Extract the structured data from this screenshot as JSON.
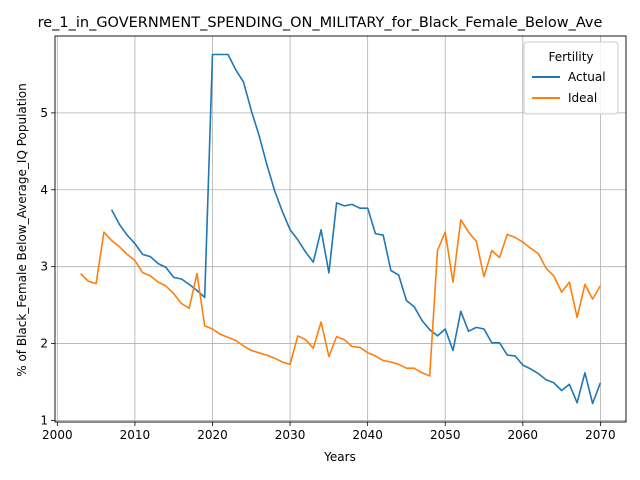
{
  "chart_data": {
    "type": "line",
    "title": "re_1_in_GOVERNMENT_SPENDING_ON_MILITARY_for_Black_Female_Below_Ave",
    "xlabel": "Years",
    "ylabel": "% of Black_Female Below_Average_IQ Population",
    "xlim": [
      1999.7,
      2073.3
    ],
    "ylim": [
      0.98,
      6.0
    ],
    "xticks": [
      2000,
      2010,
      2020,
      2030,
      2040,
      2050,
      2060,
      2070
    ],
    "yticks": [
      1,
      2,
      3,
      4,
      5
    ],
    "grid": true,
    "legend": {
      "title": "Fertility",
      "position": "top-right"
    },
    "series": [
      {
        "name": "Actual",
        "color": "#1f77b4",
        "x": [
          2007,
          2008,
          2009,
          2010,
          2011,
          2012,
          2013,
          2014,
          2015,
          2016,
          2017,
          2018,
          2019,
          2020,
          2021,
          2022,
          2023,
          2024,
          2025,
          2026,
          2027,
          2028,
          2029,
          2030,
          2031,
          2032,
          2033,
          2034,
          2035,
          2036,
          2037,
          2038,
          2039,
          2040,
          2041,
          2042,
          2043,
          2044,
          2045,
          2046,
          2047,
          2048,
          2049,
          2050,
          2051,
          2052,
          2053,
          2054,
          2055,
          2056,
          2057,
          2058,
          2059,
          2060,
          2061,
          2062,
          2063,
          2064,
          2065,
          2066,
          2067,
          2068,
          2069,
          2070
        ],
        "y": [
          3.74,
          3.55,
          3.41,
          3.3,
          3.16,
          3.13,
          3.04,
          2.99,
          2.86,
          2.84,
          2.77,
          2.69,
          2.6,
          5.76,
          5.76,
          5.76,
          5.56,
          5.4,
          5.03,
          4.71,
          4.33,
          3.99,
          3.72,
          3.48,
          3.35,
          3.19,
          3.06,
          3.48,
          2.92,
          3.83,
          3.79,
          3.81,
          3.76,
          3.76,
          3.43,
          3.41,
          2.95,
          2.89,
          2.56,
          2.48,
          2.3,
          2.18,
          2.1,
          2.19,
          1.91,
          2.42,
          2.16,
          2.21,
          2.19,
          2.01,
          2.01,
          1.85,
          1.84,
          1.72,
          1.67,
          1.61,
          1.53,
          1.49,
          1.39,
          1.47,
          1.23,
          1.62,
          1.22,
          1.49
        ]
      },
      {
        "name": "Ideal",
        "color": "#ff7f0e",
        "x": [
          2003,
          2004,
          2005,
          2006,
          2007,
          2008,
          2009,
          2010,
          2011,
          2012,
          2013,
          2014,
          2015,
          2016,
          2017,
          2018,
          2019,
          2020,
          2021,
          2022,
          2023,
          2024,
          2025,
          2026,
          2027,
          2028,
          2029,
          2030,
          2031,
          2032,
          2033,
          2034,
          2035,
          2036,
          2037,
          2038,
          2039,
          2040,
          2041,
          2042,
          2043,
          2044,
          2045,
          2046,
          2047,
          2048,
          2049,
          2050,
          2051,
          2052,
          2053,
          2054,
          2055,
          2056,
          2057,
          2058,
          2059,
          2060,
          2061,
          2062,
          2063,
          2064,
          2065,
          2066,
          2067,
          2068,
          2069,
          2070
        ],
        "y": [
          2.91,
          2.81,
          2.78,
          3.45,
          3.34,
          3.26,
          3.16,
          3.08,
          2.92,
          2.88,
          2.8,
          2.75,
          2.65,
          2.52,
          2.46,
          2.91,
          2.23,
          2.19,
          2.12,
          2.08,
          2.04,
          1.97,
          1.91,
          1.88,
          1.85,
          1.81,
          1.76,
          1.73,
          2.1,
          2.05,
          1.94,
          2.28,
          1.83,
          2.09,
          2.05,
          1.96,
          1.95,
          1.88,
          1.84,
          1.78,
          1.76,
          1.73,
          1.68,
          1.68,
          1.62,
          1.58,
          3.21,
          3.45,
          2.8,
          3.61,
          3.45,
          3.33,
          2.87,
          3.21,
          3.12,
          3.42,
          3.38,
          3.32,
          3.24,
          3.17,
          2.98,
          2.88,
          2.67,
          2.8,
          2.34,
          2.77,
          2.58,
          2.75
        ]
      }
    ]
  }
}
